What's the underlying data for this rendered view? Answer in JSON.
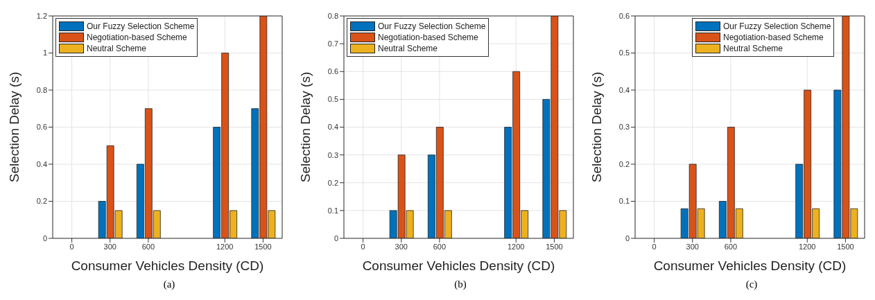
{
  "chart_data": [
    {
      "type": "bar",
      "xlabel": "Consumer Vehicles Density (CD)",
      "ylabel": "Selection Delay (s)",
      "x": [
        0,
        300,
        600,
        1200,
        1500
      ],
      "xlim": [
        -150,
        1650
      ],
      "xticks": [
        0,
        300,
        600,
        1200,
        1500
      ],
      "ylim": [
        0,
        1.2
      ],
      "yticks": [
        0,
        0.2,
        0.4,
        0.6,
        0.8,
        1,
        1.2
      ],
      "grid": true,
      "legend": "top left",
      "annotations": [
        "(a)"
      ],
      "series": [
        {
          "name": "Our Fuzzy Selection Scheme",
          "color": "#0072bd",
          "values": [
            0,
            0.2,
            0.4,
            0.6,
            0.7
          ]
        },
        {
          "name": "Negotiation-based Scheme",
          "color": "#d95319",
          "values": [
            0,
            0.5,
            0.7,
            1,
            1.2
          ]
        },
        {
          "name": "Neutral Scheme",
          "color": "#edb120",
          "values": [
            0,
            0.15,
            0.15,
            0.15,
            0.15
          ]
        }
      ]
    },
    {
      "type": "bar",
      "xlabel": "Consumer Vehicles Density (CD)",
      "ylabel": "Selection Delay (s)",
      "x": [
        0,
        300,
        600,
        1200,
        1500
      ],
      "xlim": [
        -150,
        1650
      ],
      "xticks": [
        0,
        300,
        600,
        1200,
        1500
      ],
      "ylim": [
        0,
        0.8
      ],
      "yticks": [
        0,
        0.1,
        0.2,
        0.3,
        0.4,
        0.5,
        0.6,
        0.7,
        0.8
      ],
      "grid": true,
      "legend": "top left",
      "annotations": [
        "(b)"
      ],
      "series": [
        {
          "name": "Our Fuzzy Selection Scheme",
          "color": "#0072bd",
          "values": [
            0,
            0.1,
            0.3,
            0.4,
            0.5
          ]
        },
        {
          "name": "Negotiation-based Scheme",
          "color": "#d95319",
          "values": [
            0,
            0.3,
            0.4,
            0.6,
            0.8
          ]
        },
        {
          "name": "Neutral Scheme",
          "color": "#edb120",
          "values": [
            0,
            0.1,
            0.1,
            0.1,
            0.1
          ]
        }
      ]
    },
    {
      "type": "bar",
      "xlabel": "Consumer Vehicles Density (CD)",
      "ylabel": "Selection Delay (s)",
      "x": [
        0,
        300,
        600,
        1200,
        1500
      ],
      "xlim": [
        -150,
        1650
      ],
      "xticks": [
        0,
        300,
        600,
        1200,
        1500
      ],
      "ylim": [
        0,
        0.6
      ],
      "yticks": [
        0,
        0.1,
        0.2,
        0.3,
        0.4,
        0.5,
        0.6
      ],
      "grid": true,
      "legend": "top",
      "annotations": [
        "(c)"
      ],
      "series": [
        {
          "name": "Our Fuzzy Selection Scheme",
          "color": "#0072bd",
          "values": [
            0,
            0.08,
            0.1,
            0.2,
            0.4
          ]
        },
        {
          "name": "Negotiation-based Scheme",
          "color": "#d95319",
          "values": [
            0,
            0.2,
            0.3,
            0.4,
            0.6
          ]
        },
        {
          "name": "Neutral Scheme",
          "color": "#edb120",
          "values": [
            0,
            0.08,
            0.08,
            0.08,
            0.08
          ]
        }
      ]
    }
  ]
}
